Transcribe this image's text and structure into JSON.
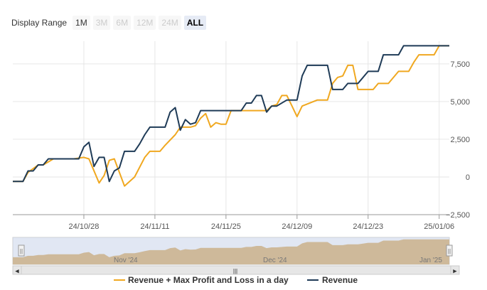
{
  "range_selector": {
    "label": "Display Range",
    "buttons": [
      {
        "label": "1M",
        "state": "enabled"
      },
      {
        "label": "3M",
        "state": "disabled"
      },
      {
        "label": "6M",
        "state": "disabled"
      },
      {
        "label": "12M",
        "state": "disabled"
      },
      {
        "label": "24M",
        "state": "disabled"
      },
      {
        "label": "ALL",
        "state": "selected"
      }
    ]
  },
  "navigator": {
    "labels": [
      "Nov '24",
      "Dec '24",
      "Jan '25"
    ],
    "handle_glyph": "||",
    "scroll_left_glyph": "◀",
    "scroll_right_glyph": "▶",
    "scroll_grip_glyph": "|||"
  },
  "colors": {
    "revenue": "#1f3b57",
    "revenue_plus": "#f0a820",
    "grid": "#e6e6e6",
    "navigator_fill": "#d49a3a",
    "navigator_mask": "#c8d4ea"
  },
  "chart_data": {
    "type": "line",
    "y_axis_position": "right",
    "ylim": [
      -2500,
      9000
    ],
    "y_ticks": [
      "−2,500",
      "0",
      "2,500",
      "5,000",
      "7,500"
    ],
    "y_tick_values": [
      -2500,
      0,
      2500,
      5000,
      7500
    ],
    "x_range": [
      "2024-10-14",
      "2025-01-08"
    ],
    "x_ticks": [
      {
        "date": "2024-10-28",
        "label": "24/10/28"
      },
      {
        "date": "2024-11-11",
        "label": "24/11/11"
      },
      {
        "date": "2024-11-25",
        "label": "24/11/25"
      },
      {
        "date": "2024-12-09",
        "label": "24/12/09"
      },
      {
        "date": "2024-12-23",
        "label": "24/12/23"
      },
      {
        "date": "2025-01-06",
        "label": "25/01/06"
      }
    ],
    "legend": {
      "position": "bottom-center"
    },
    "series": [
      {
        "name": "Revenue + Max Profit and Loss in a day",
        "color": "#f0a820",
        "points": [
          [
            "2024-10-14",
            -300
          ],
          [
            "2024-10-16",
            -300
          ],
          [
            "2024-10-17",
            300
          ],
          [
            "2024-10-19",
            800
          ],
          [
            "2024-10-20",
            800
          ],
          [
            "2024-10-22",
            1200
          ],
          [
            "2024-10-26",
            1200
          ],
          [
            "2024-10-28",
            1300
          ],
          [
            "2024-10-29",
            1200
          ],
          [
            "2024-10-31",
            -400
          ],
          [
            "2024-11-01",
            100
          ],
          [
            "2024-11-02",
            1100
          ],
          [
            "2024-11-03",
            1200
          ],
          [
            "2024-11-05",
            -600
          ],
          [
            "2024-11-07",
            0
          ],
          [
            "2024-11-09",
            1300
          ],
          [
            "2024-11-10",
            1700
          ],
          [
            "2024-11-12",
            1700
          ],
          [
            "2024-11-13",
            2100
          ],
          [
            "2024-11-15",
            2800
          ],
          [
            "2024-11-16",
            3300
          ],
          [
            "2024-11-18",
            3300
          ],
          [
            "2024-11-19",
            3400
          ],
          [
            "2024-11-20",
            3900
          ],
          [
            "2024-11-21",
            4200
          ],
          [
            "2024-11-22",
            3300
          ],
          [
            "2024-11-23",
            3600
          ],
          [
            "2024-11-24",
            3500
          ],
          [
            "2024-11-25",
            3500
          ],
          [
            "2024-11-26",
            4400
          ],
          [
            "2024-11-28",
            4400
          ],
          [
            "2024-12-03",
            4400
          ],
          [
            "2024-12-04",
            4700
          ],
          [
            "2024-12-05",
            4800
          ],
          [
            "2024-12-06",
            5400
          ],
          [
            "2024-12-07",
            5400
          ],
          [
            "2024-12-08",
            4700
          ],
          [
            "2024-12-09",
            4000
          ],
          [
            "2024-12-10",
            4700
          ],
          [
            "2024-12-13",
            5100
          ],
          [
            "2024-12-15",
            5100
          ],
          [
            "2024-12-16",
            6200
          ],
          [
            "2024-12-17",
            6600
          ],
          [
            "2024-12-18",
            6700
          ],
          [
            "2024-12-19",
            7400
          ],
          [
            "2024-12-20",
            7400
          ],
          [
            "2024-12-21",
            5800
          ],
          [
            "2024-12-24",
            5800
          ],
          [
            "2024-12-25",
            6200
          ],
          [
            "2024-12-27",
            6200
          ],
          [
            "2024-12-29",
            7000
          ],
          [
            "2024-12-31",
            7000
          ],
          [
            "2025-01-01",
            7600
          ],
          [
            "2025-01-02",
            8100
          ],
          [
            "2025-01-05",
            8100
          ],
          [
            "2025-01-06",
            8700
          ],
          [
            "2025-01-08",
            8700
          ]
        ]
      },
      {
        "name": "Revenue",
        "color": "#1f3b57",
        "points": [
          [
            "2024-10-14",
            -300
          ],
          [
            "2024-10-16",
            -300
          ],
          [
            "2024-10-17",
            400
          ],
          [
            "2024-10-18",
            400
          ],
          [
            "2024-10-19",
            800
          ],
          [
            "2024-10-20",
            800
          ],
          [
            "2024-10-21",
            1200
          ],
          [
            "2024-10-27",
            1200
          ],
          [
            "2024-10-28",
            2000
          ],
          [
            "2024-10-29",
            2300
          ],
          [
            "2024-10-30",
            700
          ],
          [
            "2024-10-31",
            1300
          ],
          [
            "2024-11-01",
            1300
          ],
          [
            "2024-11-02",
            -300
          ],
          [
            "2024-11-03",
            400
          ],
          [
            "2024-11-04",
            600
          ],
          [
            "2024-11-05",
            1700
          ],
          [
            "2024-11-07",
            1700
          ],
          [
            "2024-11-08",
            2200
          ],
          [
            "2024-11-09",
            2800
          ],
          [
            "2024-11-10",
            3300
          ],
          [
            "2024-11-12",
            3300
          ],
          [
            "2024-11-13",
            3300
          ],
          [
            "2024-11-14",
            4300
          ],
          [
            "2024-11-15",
            4600
          ],
          [
            "2024-11-16",
            3100
          ],
          [
            "2024-11-17",
            3800
          ],
          [
            "2024-11-18",
            3500
          ],
          [
            "2024-11-19",
            3600
          ],
          [
            "2024-11-20",
            4400
          ],
          [
            "2024-11-21",
            4400
          ],
          [
            "2024-11-28",
            4400
          ],
          [
            "2024-11-29",
            4900
          ],
          [
            "2024-11-30",
            4900
          ],
          [
            "2024-12-01",
            5400
          ],
          [
            "2024-12-02",
            5400
          ],
          [
            "2024-12-03",
            4300
          ],
          [
            "2024-12-04",
            4700
          ],
          [
            "2024-12-05",
            4700
          ],
          [
            "2024-12-07",
            5100
          ],
          [
            "2024-12-08",
            5100
          ],
          [
            "2024-12-09",
            5100
          ],
          [
            "2024-12-10",
            6700
          ],
          [
            "2024-12-11",
            7400
          ],
          [
            "2024-12-15",
            7400
          ],
          [
            "2024-12-16",
            5800
          ],
          [
            "2024-12-18",
            5800
          ],
          [
            "2024-12-19",
            6200
          ],
          [
            "2024-12-21",
            6200
          ],
          [
            "2024-12-23",
            7000
          ],
          [
            "2024-12-25",
            7000
          ],
          [
            "2024-12-26",
            8100
          ],
          [
            "2024-12-29",
            8100
          ],
          [
            "2024-12-30",
            8700
          ],
          [
            "2025-01-08",
            8700
          ]
        ]
      }
    ]
  }
}
